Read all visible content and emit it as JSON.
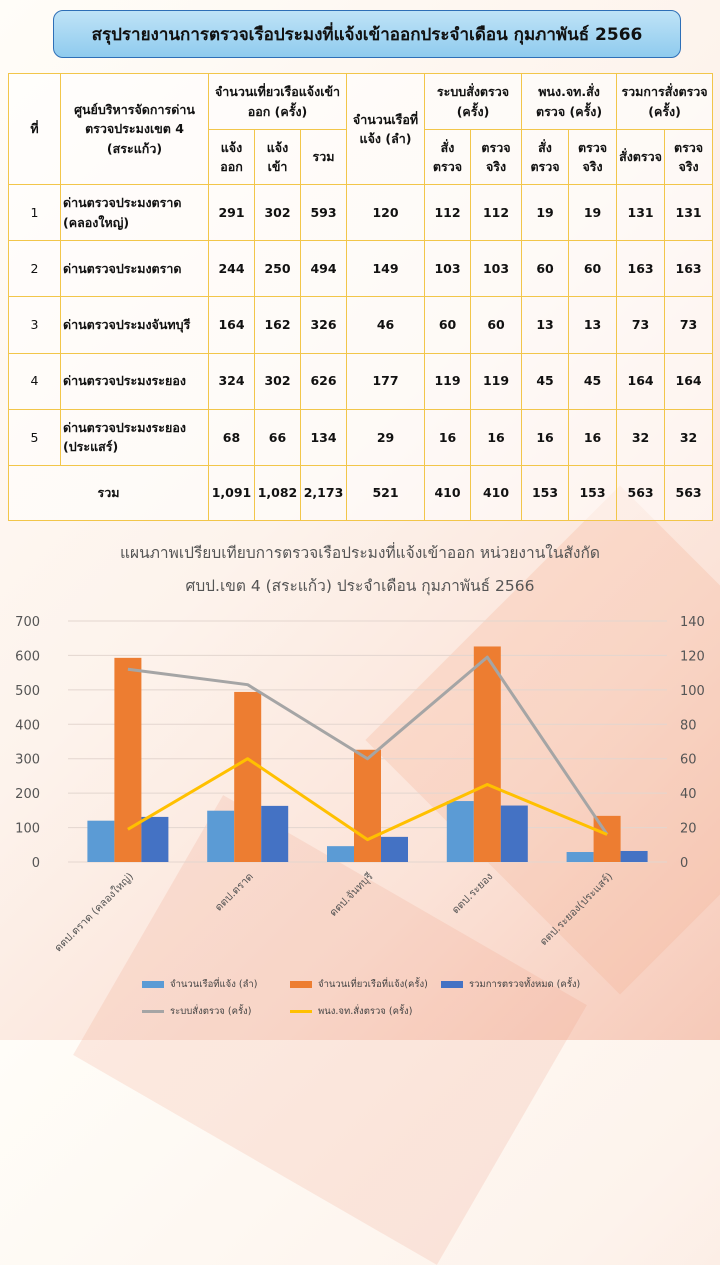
{
  "title": "สรุปรายงานการตรวจเรือประมงที่แจ้งเข้าออกประจำเดือน  กุมภาพันธ์ 2566",
  "table": {
    "headers": {
      "no": "ที่",
      "center": "ศูนย์บริหารจัดการด่านตรวจประมงเขต 4 (สระแก้ว)",
      "trips": "จำนวนเที่ยวเรือแจ้งเข้าออก (ครั้ง)",
      "trips_out": "แจ้งออก",
      "trips_in": "แจ้งเข้า",
      "trips_total": "รวม",
      "vessels": "จำนวนเรือที่แจ้ง (ลำ)",
      "system": "ระบบสั่งตรวจ (ครั้ง)",
      "ppn": "พนง.จท.สั่งตรวจ (ครั้ง)",
      "all": "รวมการสั่งตรวจ (ครั้ง)",
      "ordered": "สั่งตรวจ",
      "checked": "ตรวจจริง"
    },
    "rows": [
      {
        "no": "1",
        "name": "ด่านตรวจประมงตราด (คลองใหญ่)",
        "out": "291",
        "in": "302",
        "total": "593",
        "vessels": "120",
        "sys_order": "112",
        "sys_check": "112",
        "ppn_order": "19",
        "ppn_check": "19",
        "all_order": "131",
        "all_check": "131"
      },
      {
        "no": "2",
        "name": "ด่านตรวจประมงตราด",
        "out": "244",
        "in": "250",
        "total": "494",
        "vessels": "149",
        "sys_order": "103",
        "sys_check": "103",
        "ppn_order": "60",
        "ppn_check": "60",
        "all_order": "163",
        "all_check": "163"
      },
      {
        "no": "3",
        "name": "ด่านตรวจประมงจันทบุรี",
        "out": "164",
        "in": "162",
        "total": "326",
        "vessels": "46",
        "sys_order": "60",
        "sys_check": "60",
        "ppn_order": "13",
        "ppn_check": "13",
        "all_order": "73",
        "all_check": "73"
      },
      {
        "no": "4",
        "name": "ด่านตรวจประมงระยอง",
        "out": "324",
        "in": "302",
        "total": "626",
        "vessels": "177",
        "sys_order": "119",
        "sys_check": "119",
        "ppn_order": "45",
        "ppn_check": "45",
        "all_order": "164",
        "all_check": "164"
      },
      {
        "no": "5",
        "name": "ด่านตรวจประมงระยอง (ประแสร์)",
        "out": "68",
        "in": "66",
        "total": "134",
        "vessels": "29",
        "sys_order": "16",
        "sys_check": "16",
        "ppn_order": "16",
        "ppn_check": "16",
        "all_order": "32",
        "all_check": "32"
      }
    ],
    "total": {
      "label": "รวม",
      "out": "1,091",
      "in": "1,082",
      "total": "2,173",
      "vessels": "521",
      "sys_order": "410",
      "sys_check": "410",
      "ppn_order": "153",
      "ppn_check": "153",
      "all_order": "563",
      "all_check": "563"
    }
  },
  "chart_data": {
    "type": "bar",
    "title_line1": "แผนภาพเปรียบเทียบการตรวจเรือประมงที่แจ้งเข้าออก หน่วยงานในสังกัด",
    "title_line2": "ศบป.เขต 4 (สระแก้ว) ประจำเดือน กุมภาพันธ์ 2566",
    "categories": [
      "ดตป.ตราด (คลองใหญ่)",
      "ดตป.ตราด",
      "ดตป.จันทบุรี",
      "ดตป.ระยอง",
      "ดตป.ระยอง(ประแสร์)"
    ],
    "ylim": [
      0,
      700
    ],
    "yticks": [
      0,
      100,
      200,
      300,
      400,
      500,
      600,
      700
    ],
    "y2lim": [
      0,
      140
    ],
    "y2ticks": [
      0,
      20,
      40,
      60,
      80,
      100,
      120,
      140
    ],
    "grid": true,
    "legend_position": "bottom",
    "series": [
      {
        "name": "จำนวนเรือที่แจ้ง (ลำ)",
        "kind": "bar",
        "axis": "left",
        "color": "#5b9bd5",
        "values": [
          120,
          149,
          46,
          177,
          29
        ]
      },
      {
        "name": "จำนวนเที่ยวเรือที่แจ้ง(ครั้ง)",
        "kind": "bar",
        "axis": "left",
        "color": "#ed7d31",
        "values": [
          593,
          494,
          326,
          626,
          134
        ]
      },
      {
        "name": "รวมการตรวจทั้งหมด (ครั้ง)",
        "kind": "bar",
        "axis": "left",
        "color": "#4472c4",
        "values": [
          131,
          163,
          73,
          164,
          32
        ]
      },
      {
        "name": "ระบบสั่งตรวจ (ครั้ง)",
        "kind": "line",
        "axis": "right",
        "color": "#a5a5a5",
        "values": [
          112,
          103,
          60,
          119,
          16
        ]
      },
      {
        "name": "พนง.จท.สั่งตรวจ (ครั้ง)",
        "kind": "line",
        "axis": "right",
        "color": "#ffc000",
        "values": [
          19,
          60,
          13,
          45,
          16
        ]
      }
    ]
  }
}
